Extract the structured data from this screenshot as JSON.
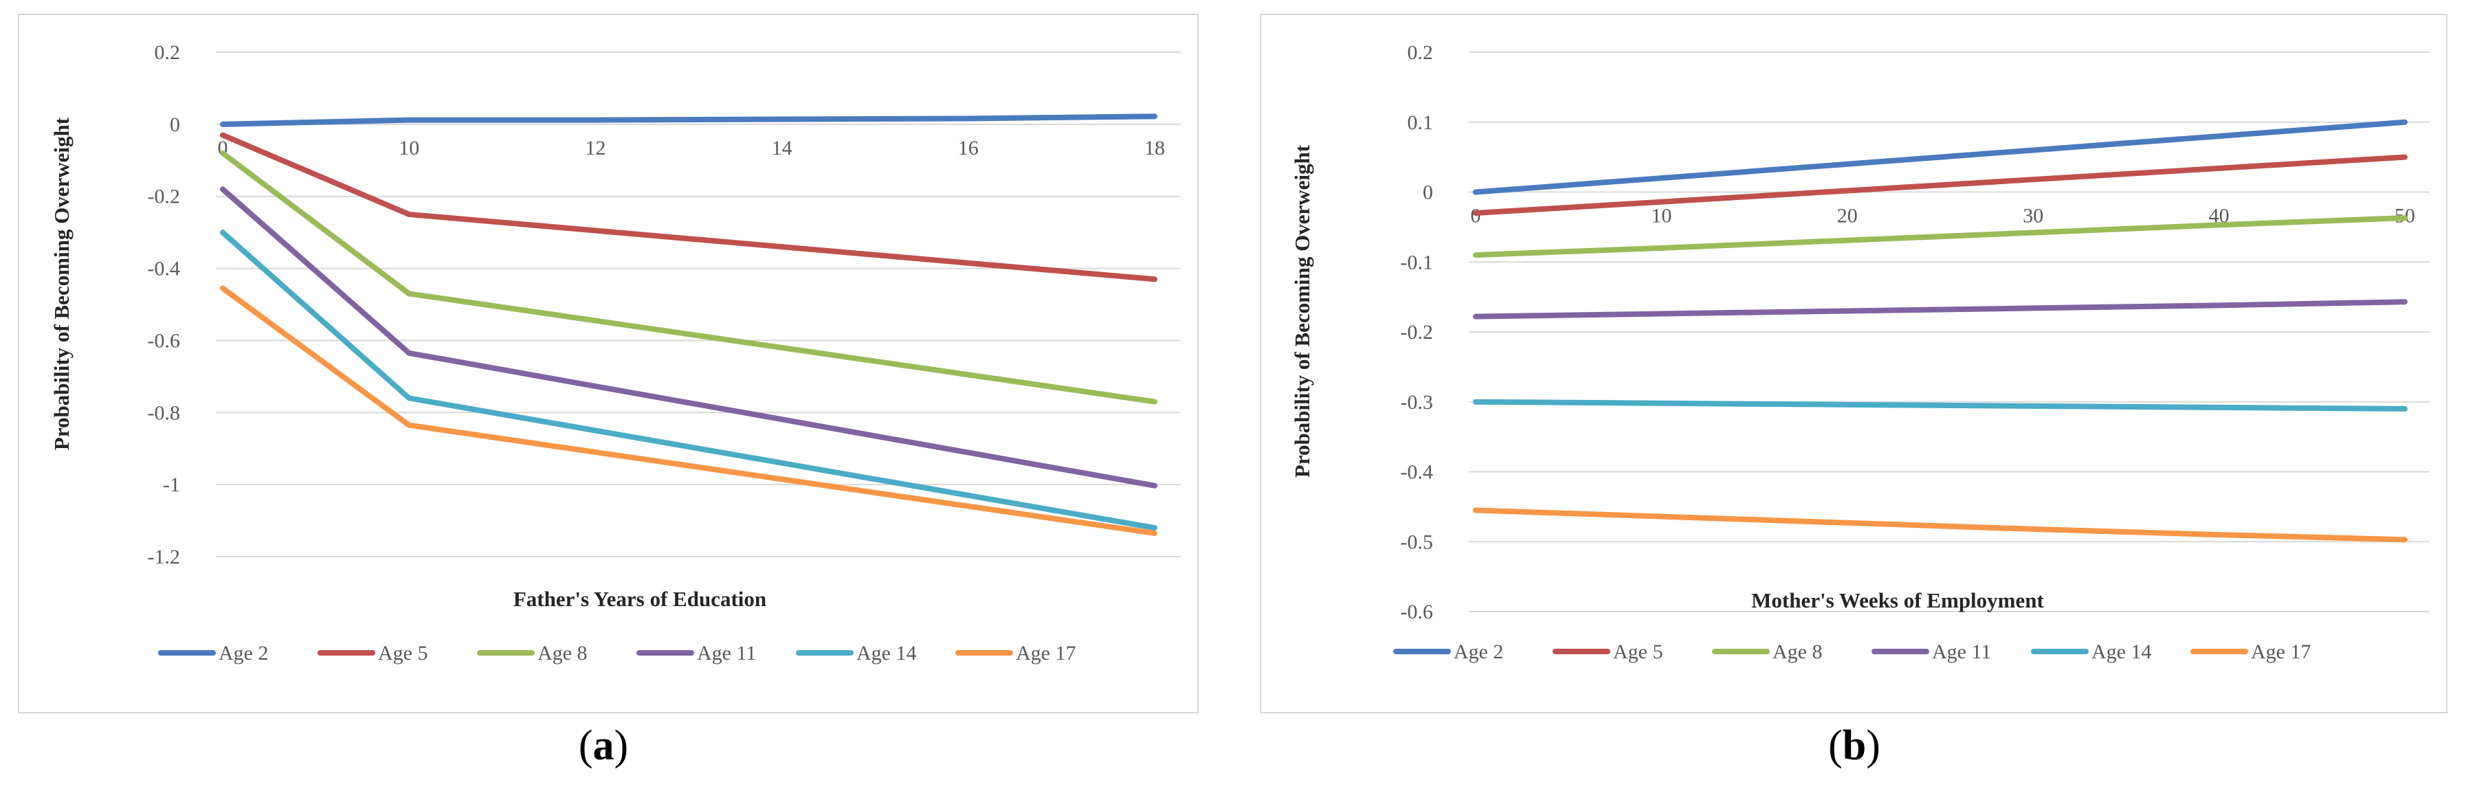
{
  "chart_data": [
    {
      "type": "line",
      "panel": "a",
      "xlabel": "Father's Years of Education",
      "ylabel": "Probability of Becoming Overweight",
      "categories": [
        "0",
        "10",
        "12",
        "14",
        "16",
        "18"
      ],
      "ylim": [
        -1.2,
        0.2
      ],
      "yticks": [
        0.2,
        0,
        -0.2,
        -0.4,
        -0.6,
        -0.8,
        -1,
        -1.2
      ],
      "ytick_labels": [
        "0.2",
        "0",
        "-0.2",
        "-0.4",
        "-0.6",
        "-0.8",
        "-1",
        "-1.2"
      ],
      "legend_position": "bottom",
      "series": [
        {
          "name": "Age 2",
          "color": "#4a7bbf",
          "values": [
            0.0,
            0.012,
            0.012,
            0.014,
            0.016,
            0.022
          ]
        },
        {
          "name": "Age 5",
          "color": "#c0504d",
          "values": [
            -0.03,
            -0.25,
            -0.295,
            -0.34,
            -0.385,
            -0.43
          ]
        },
        {
          "name": "Age 8",
          "color": "#9bbb59",
          "values": [
            -0.08,
            -0.47,
            -0.545,
            -0.62,
            -0.695,
            -0.77
          ]
        },
        {
          "name": "Age 11",
          "color": "#8064a2",
          "values": [
            -0.18,
            -0.635,
            -0.727,
            -0.819,
            -0.911,
            -1.003
          ]
        },
        {
          "name": "Age 14",
          "color": "#4bacc6",
          "values": [
            -0.3,
            -0.76,
            -0.85,
            -0.94,
            -1.03,
            -1.12
          ]
        },
        {
          "name": "Age 17",
          "color": "#f79646",
          "values": [
            -0.455,
            -0.835,
            -0.91,
            -0.985,
            -1.06,
            -1.135
          ]
        }
      ]
    },
    {
      "type": "line",
      "panel": "b",
      "xlabel": "Mother's Weeks of Employment",
      "ylabel": "Probability of Becoming Overweight",
      "categories": [
        "0",
        "10",
        "20",
        "30",
        "40",
        "50"
      ],
      "ylim": [
        -0.6,
        0.2
      ],
      "yticks": [
        0.2,
        0.1,
        0,
        -0.1,
        -0.2,
        -0.3,
        -0.4,
        -0.5,
        -0.6
      ],
      "ytick_labels": [
        "0.2",
        "0.1",
        "0",
        "-0.1",
        "-0.2",
        "-0.3",
        "-0.4",
        "-0.5",
        "-0.6"
      ],
      "legend_position": "bottom",
      "series": [
        {
          "name": "Age 2",
          "color": "#4a7bbf",
          "values": [
            0.0,
            0.02,
            0.04,
            0.06,
            0.08,
            0.1
          ]
        },
        {
          "name": "Age 5",
          "color": "#c0504d",
          "values": [
            -0.03,
            -0.014,
            0.002,
            0.018,
            0.034,
            0.05
          ]
        },
        {
          "name": "Age 8",
          "color": "#9bbb59",
          "values": [
            -0.09,
            -0.08,
            -0.069,
            -0.058,
            -0.047,
            -0.037
          ]
        },
        {
          "name": "Age 11",
          "color": "#8064a2",
          "values": [
            -0.178,
            -0.174,
            -0.17,
            -0.166,
            -0.162,
            -0.157
          ]
        },
        {
          "name": "Age 14",
          "color": "#4bacc6",
          "values": [
            -0.3,
            -0.302,
            -0.304,
            -0.306,
            -0.308,
            -0.31
          ]
        },
        {
          "name": "Age 17",
          "color": "#f79646",
          "values": [
            -0.455,
            -0.464,
            -0.473,
            -0.482,
            -0.49,
            -0.497
          ]
        }
      ]
    }
  ],
  "panel_labels": {
    "a": {
      "open": "(",
      "letter": "a",
      "close": ")"
    },
    "b": {
      "open": "(",
      "letter": "b",
      "close": ")"
    }
  }
}
